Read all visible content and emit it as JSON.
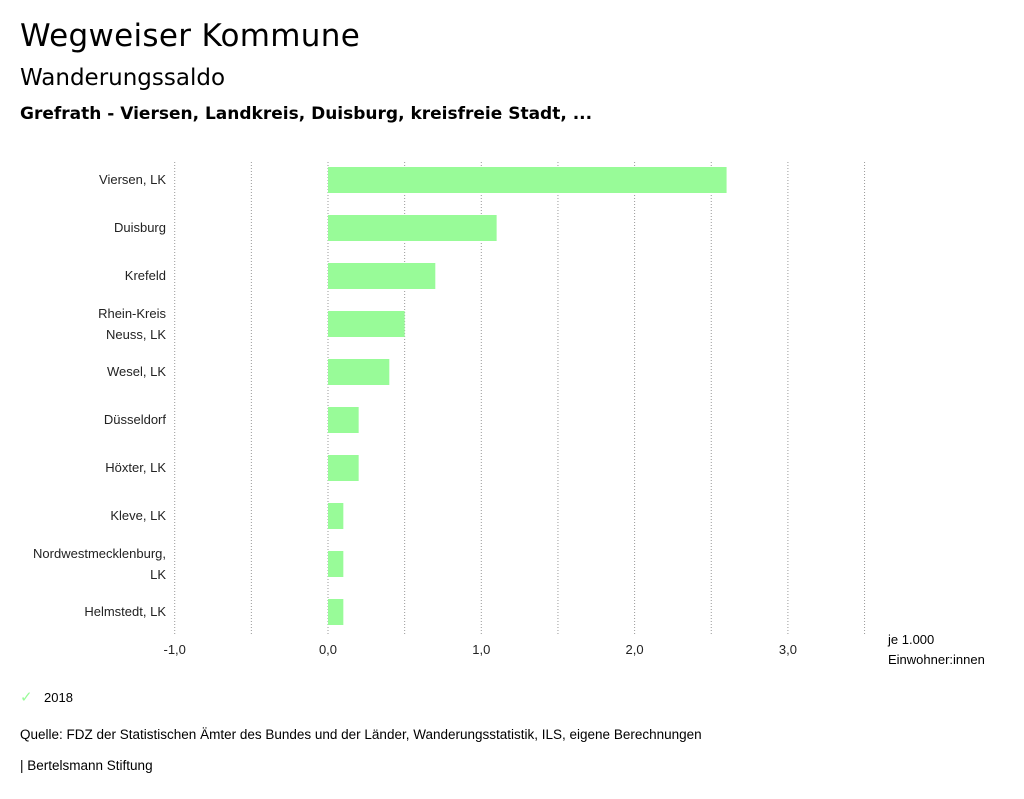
{
  "header": {
    "title": "Wegweiser Kommune",
    "subtitle": "Wanderungssaldo",
    "regions": "Grefrath - Viersen, Landkreis, Duisburg, kreisfreie Stadt, ..."
  },
  "colors": {
    "bar": "#98fb98",
    "grid": "#999999"
  },
  "chart_data": {
    "type": "bar",
    "orientation": "horizontal",
    "categories": [
      [
        "Viersen, LK"
      ],
      [
        "Duisburg"
      ],
      [
        "Krefeld"
      ],
      [
        "Rhein-Kreis",
        "Neuss, LK"
      ],
      [
        "Wesel, LK"
      ],
      [
        "Düsseldorf"
      ],
      [
        "Höxter, LK"
      ],
      [
        "Kleve, LK"
      ],
      [
        "Nordwestmecklenburg,",
        "LK"
      ],
      [
        "Helmstedt, LK"
      ]
    ],
    "series": [
      {
        "name": "2018",
        "values": [
          2.6,
          1.1,
          0.7,
          0.5,
          0.4,
          0.2,
          0.2,
          0.1,
          0.1,
          0.1
        ]
      }
    ],
    "xlim": [
      -1.0,
      3.5
    ],
    "ticks": [
      -1.0,
      0.0,
      1.0,
      2.0,
      3.0
    ],
    "tick_labels": [
      "-1,0",
      "0,0",
      "1,0",
      "2,0",
      "3,0"
    ],
    "gridlines": [
      -1.0,
      -0.5,
      0.0,
      0.5,
      1.0,
      1.5,
      2.0,
      2.5,
      3.0,
      3.5
    ],
    "unit_line1": "je 1.000",
    "unit_line2": "Einwohner:innen",
    "legend": "2018"
  },
  "footer": {
    "source": "Quelle: FDZ der Statistischen Ämter des Bundes und der Länder, Wanderungsstatistik, ILS, eigene Berechnungen",
    "brand": "| Bertelsmann Stiftung"
  }
}
